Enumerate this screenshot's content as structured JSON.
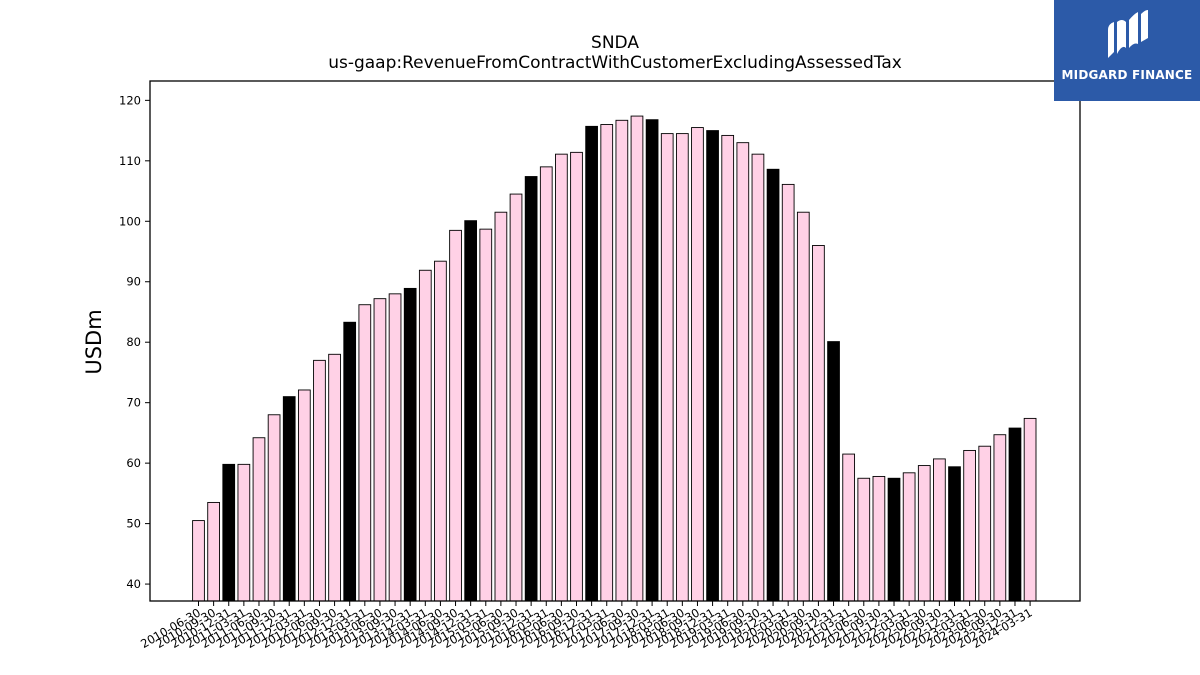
{
  "logo": {
    "text": "MIDGARD FINANCE",
    "bg_color": "#2c5aa8"
  },
  "chart_data": {
    "type": "bar",
    "title": "SNDA",
    "subtitle": "us-gaap:RevenueFromContractWithCustomerExcludingAssessedTax",
    "xlabel": "",
    "ylabel": "USDm",
    "ylim": [
      37.2,
      123.2
    ],
    "yticks": [
      40,
      50,
      60,
      70,
      80,
      90,
      100,
      110,
      120
    ],
    "grid": false,
    "colors": {
      "quarter": "#ffd1e6",
      "year_end": "#000000",
      "edge": "#000000"
    },
    "categories": [
      "2010-06-30",
      "2010-09-30",
      "2010-12-31",
      "2011-03-31",
      "2011-06-30",
      "2011-09-30",
      "2011-12-31",
      "2012-03-31",
      "2012-06-30",
      "2012-09-30",
      "2012-12-31",
      "2013-03-31",
      "2013-06-30",
      "2013-09-30",
      "2013-12-31",
      "2014-03-31",
      "2014-06-30",
      "2014-09-30",
      "2014-12-31",
      "2015-03-31",
      "2015-06-30",
      "2015-09-30",
      "2015-12-31",
      "2016-03-31",
      "2016-06-30",
      "2016-09-30",
      "2016-12-31",
      "2017-03-31",
      "2017-06-30",
      "2017-09-30",
      "2017-12-31",
      "2018-03-31",
      "2018-06-30",
      "2018-09-30",
      "2018-12-31",
      "2019-03-31",
      "2019-06-30",
      "2019-09-30",
      "2019-12-31",
      "2020-03-31",
      "2020-06-30",
      "2020-09-30",
      "2020-12-31",
      "2021-03-31",
      "2021-06-30",
      "2021-09-30",
      "2021-12-31",
      "2022-03-31",
      "2022-06-30",
      "2022-09-30",
      "2022-12-31",
      "2023-03-31",
      "2023-06-30",
      "2023-09-30",
      "2023-12-31",
      "2024-03-31"
    ],
    "values": [
      50.5,
      53.5,
      59.8,
      59.8,
      64.2,
      68.0,
      71.0,
      72.1,
      77.0,
      78.0,
      83.3,
      86.2,
      87.2,
      88.0,
      88.9,
      91.9,
      93.4,
      98.5,
      100.1,
      98.7,
      101.5,
      104.5,
      107.4,
      109.0,
      111.1,
      111.4,
      115.7,
      116.0,
      116.7,
      117.4,
      116.8,
      114.5,
      114.5,
      115.5,
      115.0,
      114.2,
      113.0,
      111.1,
      108.6,
      106.1,
      101.5,
      96.0,
      80.1,
      61.5,
      57.5,
      57.8,
      57.5,
      58.4,
      59.6,
      60.7,
      59.4,
      62.1,
      62.8,
      64.7,
      65.8,
      67.4
    ]
  }
}
